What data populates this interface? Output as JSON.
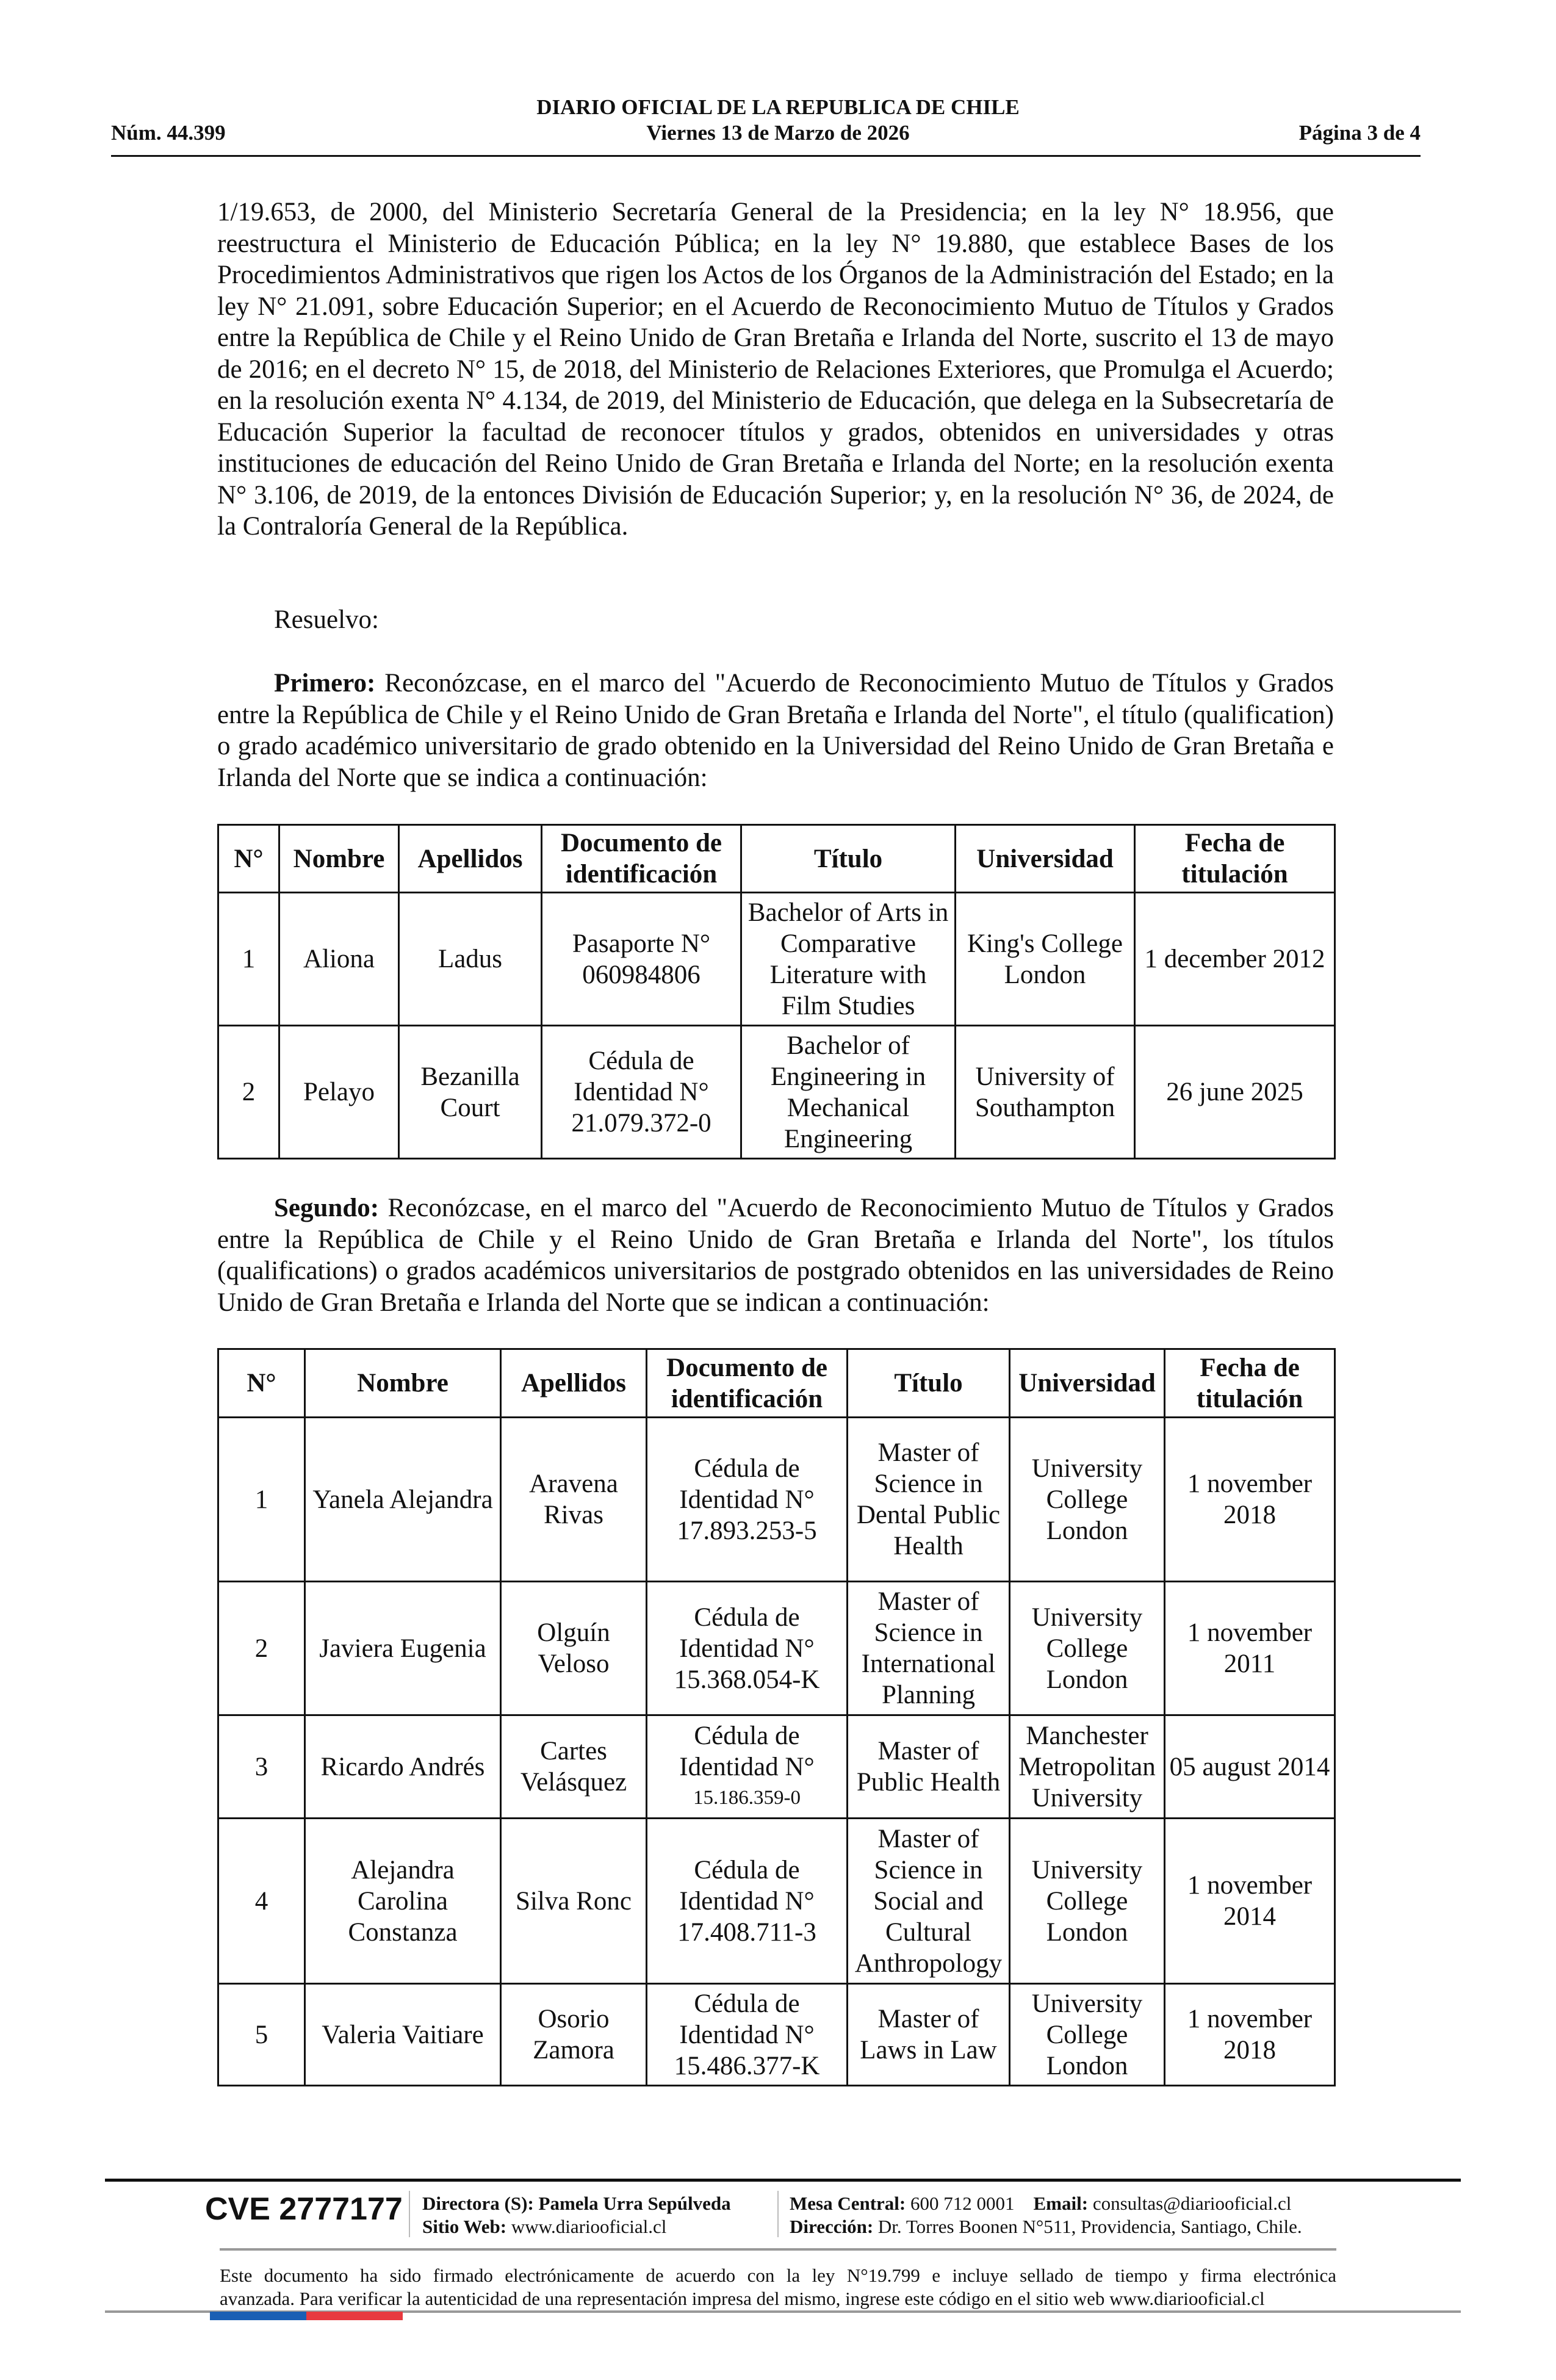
{
  "header": {
    "title": "DIARIO OFICIAL DE LA REPUBLICA DE CHILE",
    "number": "Núm. 44.399",
    "date": "Viernes 13 de Marzo de 2026",
    "page": "Página 3 de 4"
  },
  "body": {
    "intro": "1/19.653, de 2000, del Ministerio Secretaría General de la Presidencia; en la ley N° 18.956, que reestructura el Ministerio de Educación Pública; en la ley N° 19.880, que establece Bases de los Procedimientos Administrativos que rigen los Actos de los Órganos de la Administración del Estado; en la ley N° 21.091, sobre Educación Superior; en el Acuerdo de Reconocimiento Mutuo de Títulos y Grados entre la República de Chile y el Reino Unido de Gran Bretaña e Irlanda del Norte, suscrito el 13 de mayo de 2016; en el decreto N° 15, de 2018, del Ministerio de Relaciones Exteriores, que Promulga el Acuerdo; en la resolución exenta N° 4.134, de 2019, del Ministerio de Educación, que delega en la Subsecretaría de Educación Superior la facultad de reconocer títulos y grados, obtenidos en universidades y otras instituciones de educación del Reino Unido de Gran Bretaña e Irlanda del Norte; en la resolución exenta N° 3.106, de 2019, de la entonces División de Educación Superior; y, en la resolución N° 36, de 2024, de la Contraloría General de la República.",
    "resuelvo": "Resuelvo:",
    "primero_label": "Primero:",
    "primero_text": " Reconózcase, en el marco del \"Acuerdo de Reconocimiento Mutuo de Títulos y Grados entre la República de Chile y el Reino Unido de Gran Bretaña e Irlanda del Norte\", el título (qualification) o grado académico universitario de grado obtenido en la Universidad del Reino Unido de Gran Bretaña e Irlanda del Norte que se indica a continuación:",
    "segundo_label": "Segundo:",
    "segundo_text": " Reconózcase, en el marco del \"Acuerdo de Reconocimiento Mutuo de Títulos y Grados entre la República de Chile y el Reino Unido de Gran Bretaña e Irlanda del Norte\", los títulos (qualifications) o grados académicos universitarios de postgrado obtenidos en las universidades de Reino Unido de Gran Bretaña e Irlanda del Norte que se indican a continuación:"
  },
  "table_headers": [
    "N°",
    "Nombre",
    "Apellidos",
    "Documento de identificación",
    "Título",
    "Universidad",
    "Fecha de titulación"
  ],
  "table1": [
    [
      "1",
      "Aliona",
      "Ladus",
      "Pasaporte N° 060984806",
      "Bachelor of Arts in Comparative Literature with Film Studies",
      "King's College London",
      "1 december 2012"
    ],
    [
      "2",
      "Pelayo",
      "Bezanilla Court",
      "Cédula de Identidad N° 21.079.372-0",
      "Bachelor of Engineering in Mechanical Engineering",
      "University of Southampton",
      "26 june 2025"
    ]
  ],
  "table2": [
    [
      "1",
      "Yanela Alejandra",
      "Aravena Rivas",
      "Cédula de Identidad N° 17.893.253-5",
      "Master of Science in Dental Public Health",
      "University College London",
      "1 november 2018"
    ],
    [
      "2",
      "Javiera Eugenia",
      "Olguín Veloso",
      "Cédula de Identidad N° 15.368.054-K",
      "Master of Science in International Planning",
      "University College London",
      "1 november 2011"
    ],
    [
      "3",
      "Ricardo Andrés",
      "Cartes Velásquez",
      "Cédula de Identidad N°",
      "Master of Public Health",
      "Manchester Metropolitan University",
      "05 august 2014"
    ],
    [
      "4",
      "Alejandra Carolina Constanza",
      "Silva Ronc",
      "Cédula de Identidad N° 17.408.711-3",
      "Master of Science in Social and Cultural Anthropology",
      "University College London",
      "1 november 2014"
    ],
    [
      "5",
      "Valeria Vaitiare",
      "Osorio Zamora",
      "Cédula de Identidad N° 15.486.377-K",
      "Master of Laws in Law",
      "University College London",
      "1 november 2018"
    ]
  ],
  "table2_row3_id_number": "15.186.359-0",
  "footer": {
    "cve": "CVE 2777177",
    "directora_label": "Directora (S):",
    "directora": "Pamela Urra Sepúlveda",
    "web_label": "Sitio Web:",
    "web": "www.diariooficial.cl",
    "mesa_label": "Mesa Central:",
    "mesa": "600 712 0001",
    "email_label": "Email:",
    "email": "consultas@diariooficial.cl",
    "direccion_label": "Dirección:",
    "direccion": "Dr. Torres Boonen N°511, Providencia, Santiago, Chile.",
    "note_line1": "Este documento ha sido firmado electrónicamente de acuerdo con la ley N°19.799 e incluye sellado de tiempo y firma electrónica",
    "note_line2": "avanzada. Para verificar la autenticidad de una representación impresa del mismo, ingrese este código en el sitio web www.diariooficial.cl"
  },
  "colors": {
    "flag_blue": "#1a5fb4",
    "flag_red": "#e83a3f"
  }
}
